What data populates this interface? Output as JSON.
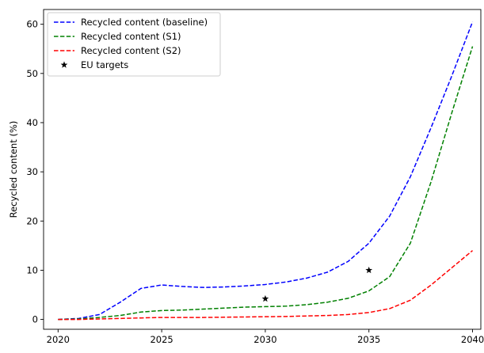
{
  "chart_data": {
    "type": "line",
    "title": "",
    "xlabel": "",
    "ylabel": "Recycled content (%)",
    "xlim": [
      2019.3,
      2040.4
    ],
    "ylim": [
      -2,
      63
    ],
    "xticks": [
      2020,
      2025,
      2030,
      2035,
      2040
    ],
    "yticks": [
      0,
      10,
      20,
      30,
      40,
      50,
      60
    ],
    "grid": false,
    "legend_position": "top-left",
    "series": [
      {
        "name": "Recycled content (baseline)",
        "style": "dashed",
        "color": "#0000ff",
        "x": [
          2020,
          2021,
          2022,
          2023,
          2024,
          2025,
          2026,
          2027,
          2028,
          2029,
          2030,
          2031,
          2032,
          2033,
          2034,
          2035,
          2036,
          2037,
          2038,
          2039,
          2040
        ],
        "y": [
          0,
          0.2,
          1.0,
          3.5,
          6.3,
          7.0,
          6.7,
          6.5,
          6.6,
          6.8,
          7.1,
          7.6,
          8.4,
          9.6,
          11.8,
          15.5,
          21.0,
          29.0,
          39.0,
          49.5,
          60.5
        ]
      },
      {
        "name": "Recycled content (S1)",
        "style": "dashed",
        "color": "#008000",
        "x": [
          2020,
          2021,
          2022,
          2023,
          2024,
          2025,
          2026,
          2027,
          2028,
          2029,
          2030,
          2031,
          2032,
          2033,
          2034,
          2035,
          2036,
          2037,
          2038,
          2039,
          2040
        ],
        "y": [
          0,
          0.1,
          0.4,
          0.8,
          1.5,
          1.8,
          1.9,
          2.1,
          2.3,
          2.5,
          2.6,
          2.7,
          3.0,
          3.5,
          4.3,
          5.8,
          8.7,
          15.5,
          28.0,
          42.0,
          55.5
        ]
      },
      {
        "name": "Recycled content (S2)",
        "style": "dashed",
        "color": "#ff0000",
        "x": [
          2020,
          2021,
          2022,
          2023,
          2024,
          2025,
          2026,
          2027,
          2028,
          2029,
          2030,
          2031,
          2032,
          2033,
          2034,
          2035,
          2036,
          2037,
          2038,
          2039,
          2040
        ],
        "y": [
          0,
          0,
          0.1,
          0.2,
          0.3,
          0.4,
          0.4,
          0.4,
          0.45,
          0.5,
          0.55,
          0.6,
          0.7,
          0.8,
          1.0,
          1.4,
          2.2,
          3.9,
          7.0,
          10.5,
          14.0
        ]
      },
      {
        "name": "EU targets",
        "style": "star",
        "color": "#000000",
        "x": [
          2030,
          2035
        ],
        "y": [
          4.2,
          10.0
        ]
      }
    ]
  }
}
